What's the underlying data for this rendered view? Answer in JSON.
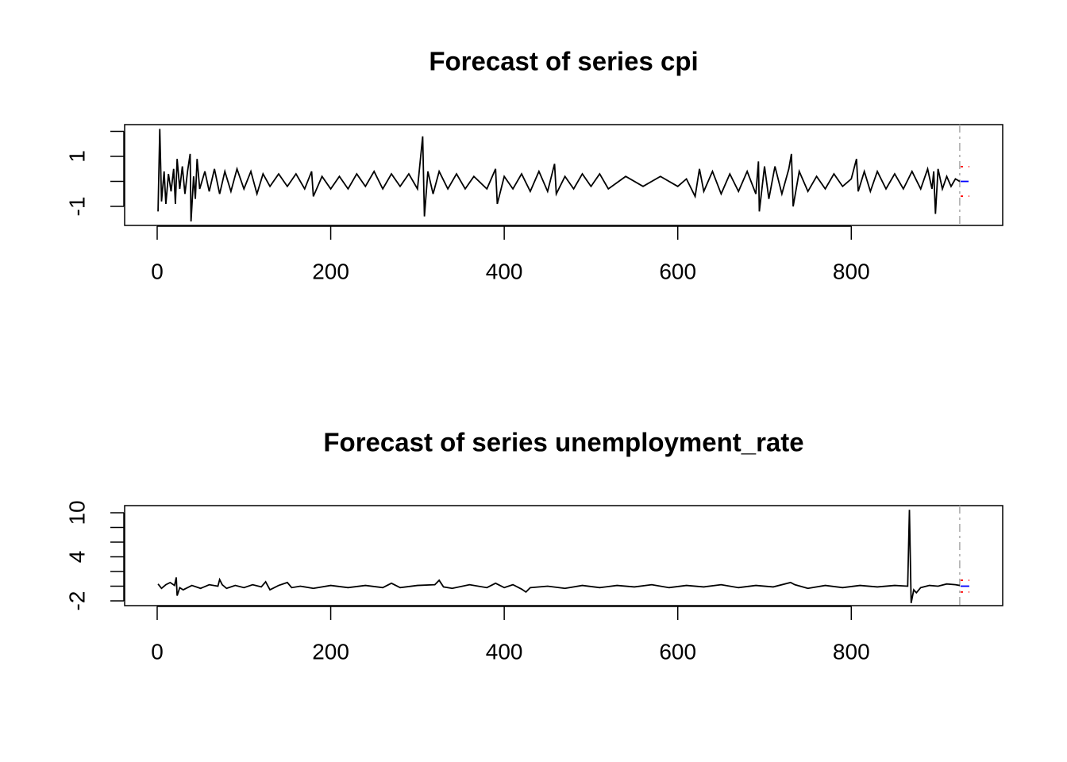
{
  "chart_data": [
    {
      "type": "line",
      "title": "Forecast of series cpi",
      "xlim": [
        -37.5,
        974.5
      ],
      "xticks": [
        0,
        200,
        400,
        600,
        800
      ],
      "ylim": [
        -1.76,
        2.27
      ],
      "yticks": [
        -1,
        {
          "value": 0,
          "label": null
        },
        1,
        {
          "value": 2,
          "label": null
        }
      ],
      "vline": 925,
      "vline_color": "#aaaaaa",
      "series": [
        {
          "color": "#000000",
          "linestyle": "solid",
          "x": [
            1,
            3,
            5,
            8,
            10,
            13,
            16,
            19,
            21,
            23,
            26,
            29,
            32,
            35,
            38,
            39,
            42,
            44,
            46,
            49,
            55,
            60,
            66,
            72,
            78,
            85,
            92,
            100,
            108,
            115,
            122,
            130,
            140,
            150,
            160,
            170,
            178,
            180,
            190,
            200,
            210,
            220,
            230,
            240,
            250,
            260,
            270,
            280,
            290,
            300,
            306,
            308,
            312,
            318,
            325,
            335,
            345,
            355,
            365,
            380,
            390,
            392,
            400,
            410,
            420,
            430,
            440,
            450,
            458,
            460,
            470,
            480,
            490,
            500,
            510,
            520,
            540,
            560,
            580,
            600,
            610,
            620,
            625,
            630,
            640,
            650,
            660,
            670,
            680,
            690,
            693,
            694,
            700,
            705,
            712,
            720,
            728,
            731,
            733,
            740,
            750,
            760,
            770,
            780,
            790,
            800,
            806,
            808,
            815,
            822,
            830,
            840,
            850,
            860,
            870,
            880,
            888,
            893,
            895,
            897,
            900,
            905,
            910,
            915,
            920,
            925
          ],
          "values": [
            -1.2,
            2.1,
            -0.8,
            0.4,
            -0.9,
            0.3,
            -0.4,
            0.5,
            -0.9,
            0.9,
            -0.3,
            0.6,
            -0.5,
            0.4,
            1.1,
            -1.6,
            0.2,
            -0.7,
            0.9,
            -0.3,
            0.4,
            -0.4,
            0.5,
            -0.5,
            0.4,
            -0.4,
            0.5,
            -0.3,
            0.4,
            -0.5,
            0.3,
            -0.2,
            0.3,
            -0.2,
            0.3,
            -0.3,
            0.4,
            -0.6,
            0.2,
            -0.3,
            0.2,
            -0.3,
            0.3,
            -0.2,
            0.4,
            -0.3,
            0.3,
            -0.2,
            0.3,
            -0.3,
            1.8,
            -1.4,
            0.4,
            -0.5,
            0.4,
            -0.3,
            0.3,
            -0.3,
            0.2,
            -0.3,
            0.5,
            -0.9,
            0.2,
            -0.3,
            0.3,
            -0.4,
            0.4,
            -0.4,
            0.7,
            -0.5,
            0.2,
            -0.3,
            0.3,
            -0.2,
            0.3,
            -0.3,
            0.2,
            -0.2,
            0.2,
            -0.2,
            0.1,
            -0.6,
            0.5,
            -0.4,
            0.4,
            -0.5,
            0.3,
            -0.4,
            0.4,
            -0.5,
            0.8,
            -1.2,
            0.6,
            -0.7,
            0.6,
            -0.5,
            0.5,
            1.1,
            -1.0,
            0.4,
            -0.4,
            0.2,
            -0.3,
            0.3,
            -0.2,
            0.1,
            0.9,
            -0.4,
            0.4,
            -0.4,
            0.4,
            -0.3,
            0.3,
            -0.3,
            0.4,
            -0.3,
            0.5,
            -0.3,
            0.4,
            -1.3,
            0.5,
            -0.3,
            0.2,
            -0.2,
            0.1,
            0.0
          ]
        },
        {
          "color": "#0000ff",
          "linestyle": "dashed",
          "x": [
            926,
            936
          ],
          "values": [
            0.0,
            0.0
          ]
        },
        {
          "color": "#ff0000",
          "linestyle": "dotted",
          "x": [
            926,
            936
          ],
          "values": [
            0.59,
            0.59
          ]
        },
        {
          "color": "#ff0000",
          "linestyle": "dotted",
          "x": [
            926,
            936
          ],
          "values": [
            -0.59,
            -0.59
          ]
        }
      ]
    },
    {
      "type": "line",
      "title": "Forecast of series unemployment_rate",
      "xlim": [
        -37.5,
        974.5
      ],
      "xticks": [
        0,
        200,
        400,
        600,
        800
      ],
      "ylim": [
        -2.65,
        10.97
      ],
      "yticks": [
        -2,
        {
          "value": 0,
          "label": null
        },
        {
          "value": 2,
          "label": null
        },
        4,
        {
          "value": 6,
          "label": null
        },
        {
          "value": 8,
          "label": null
        },
        10
      ],
      "vline": 925,
      "vline_color": "#aaaaaa",
      "series": [
        {
          "color": "#000000",
          "linestyle": "solid",
          "x": [
            1,
            5,
            10,
            15,
            20,
            22,
            23,
            26,
            30,
            40,
            50,
            60,
            70,
            72,
            75,
            80,
            90,
            100,
            110,
            120,
            125,
            130,
            140,
            150,
            155,
            165,
            180,
            200,
            220,
            240,
            260,
            270,
            280,
            300,
            320,
            325,
            330,
            340,
            360,
            380,
            390,
            400,
            410,
            420,
            425,
            430,
            450,
            470,
            490,
            510,
            530,
            550,
            570,
            590,
            610,
            630,
            650,
            670,
            690,
            710,
            730,
            735,
            750,
            770,
            790,
            810,
            830,
            850,
            865,
            867,
            869,
            872,
            875,
            880,
            890,
            900,
            910,
            920,
            925
          ],
          "values": [
            0.3,
            -0.3,
            0.2,
            0.5,
            0.1,
            1.2,
            -1.3,
            -0.2,
            -0.5,
            0.1,
            -0.3,
            0.2,
            0.0,
            0.9,
            0.2,
            -0.3,
            0.1,
            -0.2,
            0.2,
            -0.1,
            0.6,
            -0.5,
            0.1,
            0.5,
            -0.2,
            0.0,
            -0.3,
            0.1,
            -0.2,
            0.1,
            -0.2,
            0.4,
            -0.2,
            0.1,
            0.2,
            0.8,
            -0.1,
            -0.3,
            0.2,
            -0.2,
            0.4,
            -0.2,
            0.2,
            -0.4,
            -0.8,
            -0.2,
            0.0,
            -0.3,
            0.1,
            -0.2,
            0.1,
            -0.1,
            0.2,
            -0.2,
            0.1,
            -0.1,
            0.2,
            -0.2,
            0.1,
            -0.1,
            0.5,
            0.2,
            -0.3,
            0.1,
            -0.2,
            0.1,
            -0.1,
            0.1,
            0.0,
            10.4,
            -2.3,
            -0.5,
            -0.9,
            -0.2,
            0.1,
            0.0,
            0.3,
            0.2,
            0.1
          ]
        },
        {
          "color": "#0000ff",
          "linestyle": "solid",
          "x": [
            926,
            936
          ],
          "values": [
            0.0,
            0.0
          ]
        },
        {
          "color": "#ff0000",
          "linestyle": "dotted",
          "x": [
            926,
            936
          ],
          "values": [
            0.8,
            0.8
          ]
        },
        {
          "color": "#ff0000",
          "linestyle": "dotted",
          "x": [
            926,
            936
          ],
          "values": [
            -0.8,
            -0.8
          ]
        }
      ]
    }
  ]
}
